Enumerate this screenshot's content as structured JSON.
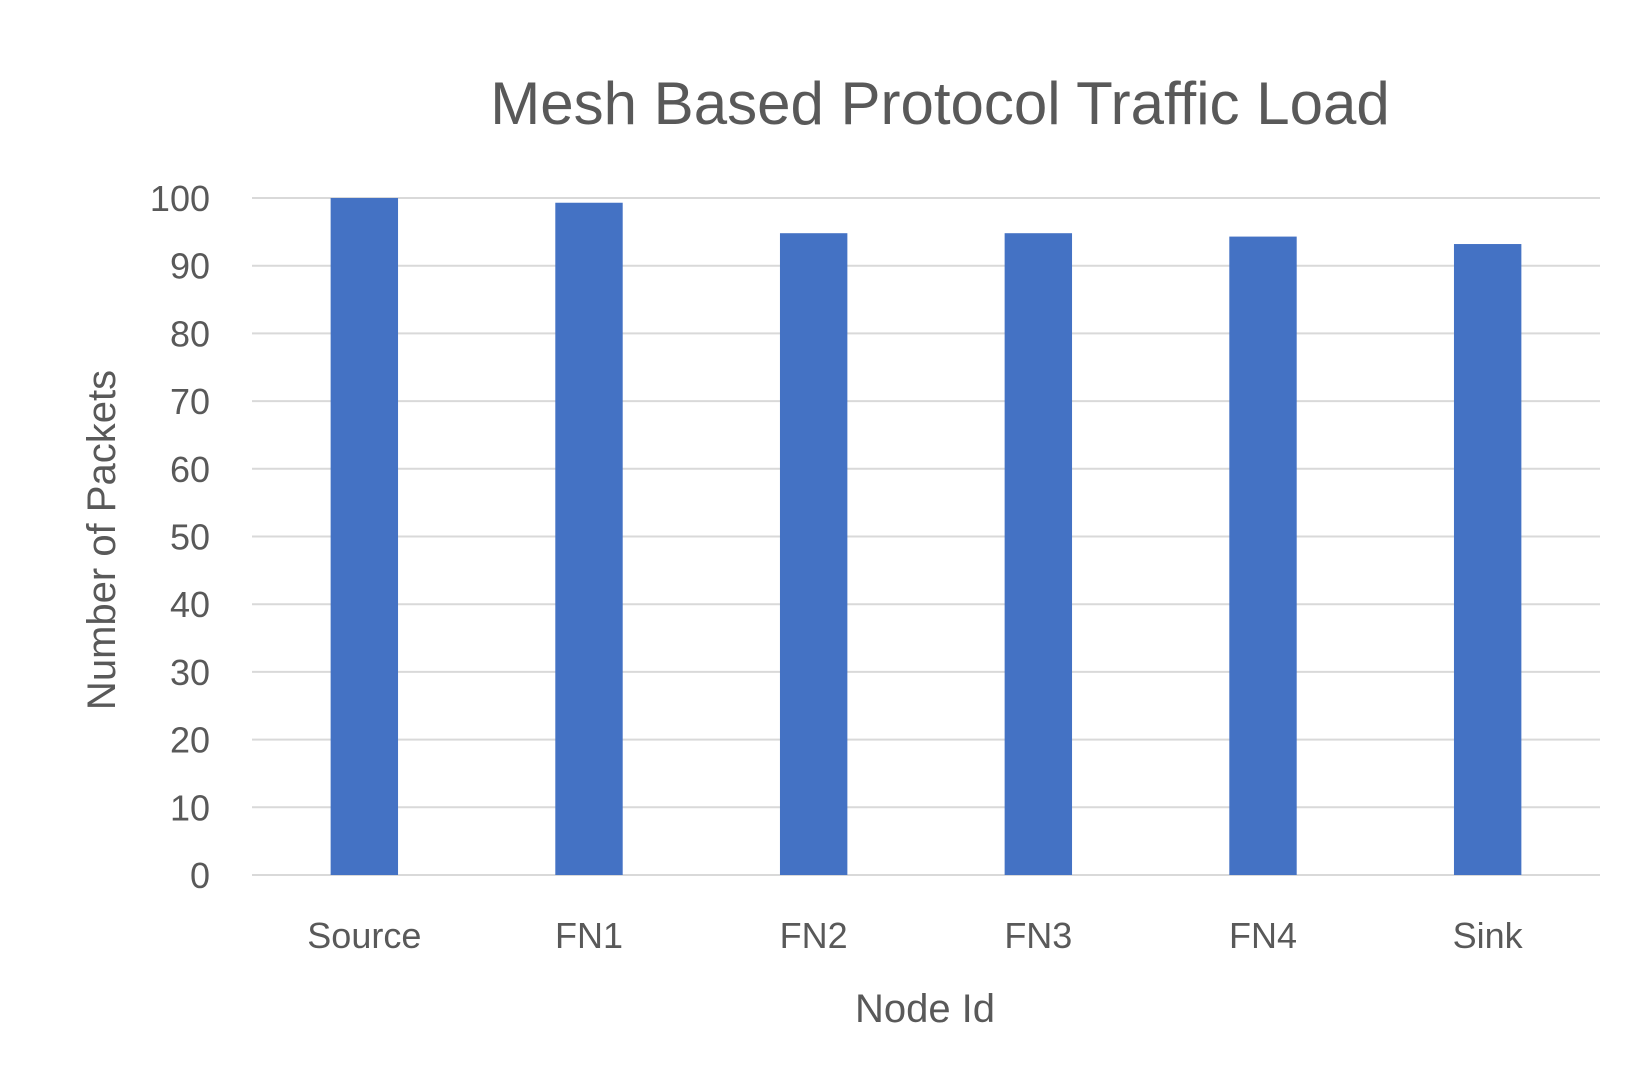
{
  "chart_data": {
    "type": "bar",
    "title": "Mesh Based Protocol Traffic Load",
    "xlabel": "Node Id",
    "ylabel": "Number of Packets",
    "categories": [
      "Source",
      "FN1",
      "FN2",
      "FN3",
      "FN4",
      "Sink"
    ],
    "values": [
      100,
      99.3,
      94.8,
      94.8,
      94.3,
      93.2
    ],
    "ylim": [
      0,
      100
    ],
    "yticks": [
      0,
      10,
      20,
      30,
      40,
      50,
      60,
      70,
      80,
      90,
      100
    ],
    "grid": true,
    "legend": "none",
    "bar_color": "#4472c4"
  }
}
